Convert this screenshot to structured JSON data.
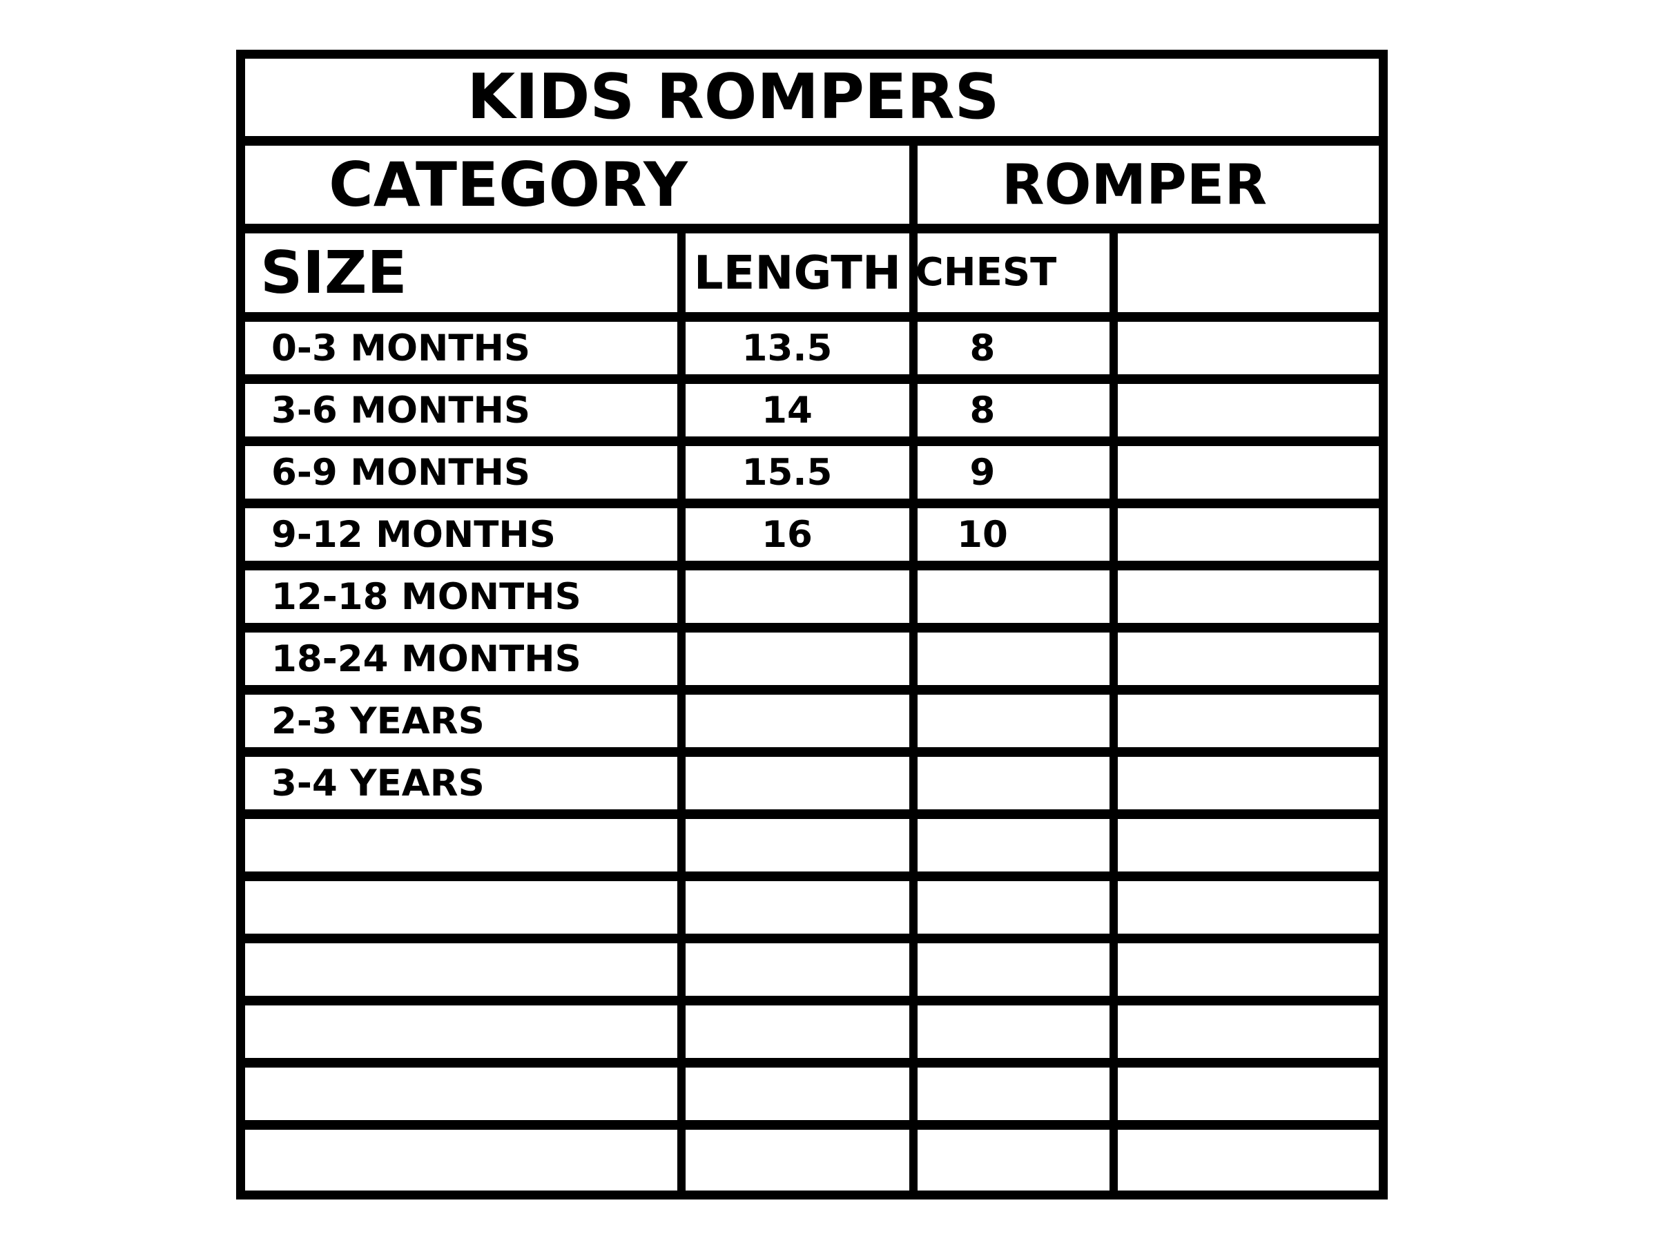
{
  "title": "KIDS ROMPERS",
  "colors": {
    "line": "#000000",
    "background": "#ffffff",
    "text": "#000000"
  },
  "group_headers": {
    "category": "CATEGORY",
    "romper": "ROMPER"
  },
  "column_headers": {
    "size": "SIZE",
    "length": "LENGTH",
    "chest": "CHEST",
    "extra": ""
  },
  "rows": [
    {
      "size": "0-3 MONTHS",
      "length": "13.5",
      "chest": "8",
      "extra": ""
    },
    {
      "size": "3-6 MONTHS",
      "length": "14",
      "chest": "8",
      "extra": ""
    },
    {
      "size": "6-9 MONTHS",
      "length": "15.5",
      "chest": "9",
      "extra": ""
    },
    {
      "size": "9-12 MONTHS",
      "length": "16",
      "chest": "10",
      "extra": ""
    },
    {
      "size": "12-18 MONTHS",
      "length": "",
      "chest": "",
      "extra": ""
    },
    {
      "size": "18-24 MONTHS",
      "length": "",
      "chest": "",
      "extra": ""
    },
    {
      "size": "2-3 YEARS",
      "length": "",
      "chest": "",
      "extra": ""
    },
    {
      "size": "3-4 YEARS",
      "length": "",
      "chest": "",
      "extra": ""
    },
    {
      "size": "",
      "length": "",
      "chest": "",
      "extra": ""
    },
    {
      "size": "",
      "length": "",
      "chest": "",
      "extra": ""
    },
    {
      "size": "",
      "length": "",
      "chest": "",
      "extra": ""
    },
    {
      "size": "",
      "length": "",
      "chest": "",
      "extra": ""
    },
    {
      "size": "",
      "length": "",
      "chest": "",
      "extra": ""
    },
    {
      "size": "",
      "length": "",
      "chest": "",
      "extra": ""
    }
  ],
  "chart_data": {
    "type": "table",
    "title": "KIDS ROMPERS",
    "columns": [
      "SIZE",
      "LENGTH",
      "CHEST"
    ],
    "records": [
      [
        "0-3 MONTHS",
        13.5,
        8
      ],
      [
        "3-6 MONTHS",
        14,
        8
      ],
      [
        "6-9 MONTHS",
        15.5,
        9
      ],
      [
        "9-12 MONTHS",
        16,
        10
      ],
      [
        "12-18 MONTHS",
        null,
        null
      ],
      [
        "18-24 MONTHS",
        null,
        null
      ],
      [
        "2-3 YEARS",
        null,
        null
      ],
      [
        "3-4 YEARS",
        null,
        null
      ]
    ]
  }
}
